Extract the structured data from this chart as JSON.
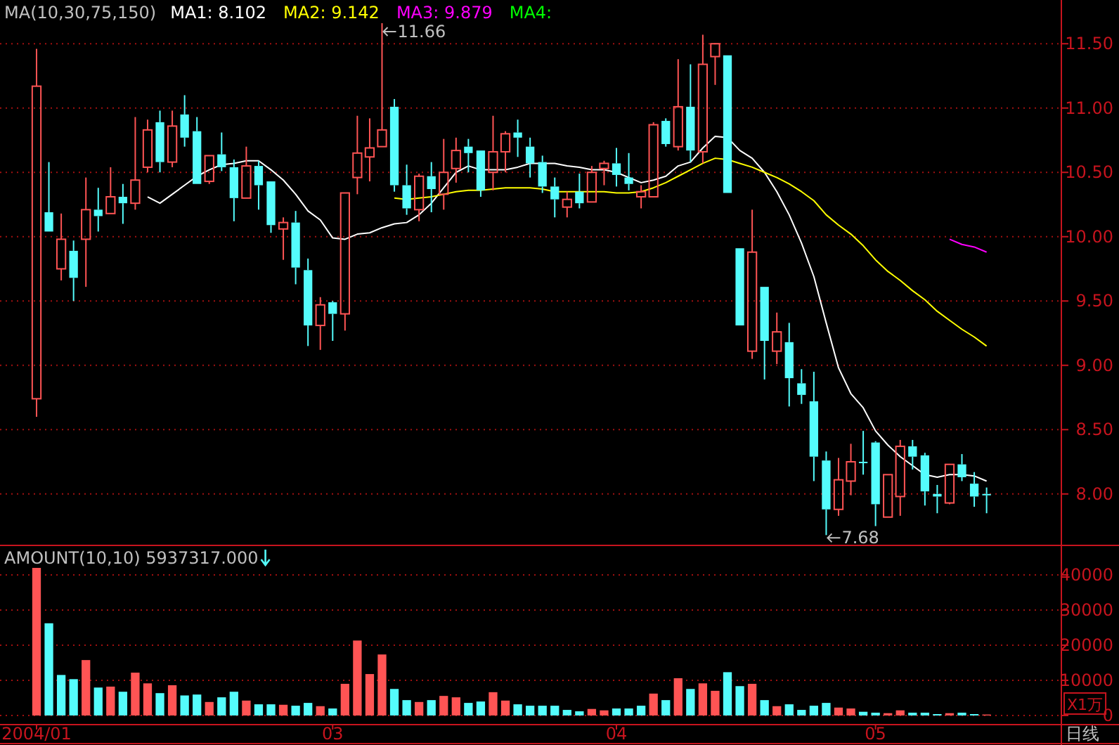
{
  "chart_data": [
    {
      "type": "candlestick",
      "categories": [
        "2004/01",
        null,
        null,
        null,
        null,
        null,
        null,
        null,
        null,
        null,
        null,
        null,
        null,
        null,
        null,
        null,
        null,
        null,
        null,
        null,
        null,
        null,
        null,
        null,
        "03",
        null,
        null,
        null,
        null,
        null,
        null,
        null,
        null,
        null,
        null,
        null,
        null,
        null,
        null,
        null,
        null,
        null,
        null,
        null,
        null,
        null,
        null,
        "04",
        null,
        null,
        null,
        null,
        null,
        null,
        null,
        null,
        null,
        null,
        null,
        null,
        null,
        null,
        null,
        null,
        null,
        null,
        null,
        null,
        "05",
        null,
        null,
        null,
        null,
        null,
        null,
        null,
        null,
        null
      ],
      "ohlc": [
        [
          8.74,
          11.46,
          8.6,
          11.17
        ],
        [
          10.19,
          10.58,
          10.04,
          10.04
        ],
        [
          9.75,
          10.18,
          9.66,
          9.98
        ],
        [
          9.89,
          9.97,
          9.5,
          9.68
        ],
        [
          9.98,
          10.46,
          9.61,
          10.21
        ],
        [
          10.21,
          10.38,
          10.04,
          10.16
        ],
        [
          10.18,
          10.54,
          10.18,
          10.31
        ],
        [
          10.31,
          10.41,
          10.1,
          10.26
        ],
        [
          10.26,
          10.93,
          10.21,
          10.44
        ],
        [
          10.54,
          10.91,
          10.5,
          10.83
        ],
        [
          10.89,
          10.98,
          10.5,
          10.58
        ],
        [
          10.58,
          10.98,
          10.54,
          10.86
        ],
        [
          10.95,
          11.1,
          10.7,
          10.77
        ],
        [
          10.82,
          10.93,
          10.41,
          10.41
        ],
        [
          10.43,
          10.63,
          10.41,
          10.63
        ],
        [
          10.64,
          10.81,
          10.51,
          10.54
        ],
        [
          10.54,
          10.6,
          10.12,
          10.3
        ],
        [
          10.3,
          10.7,
          10.3,
          10.55
        ],
        [
          10.55,
          10.59,
          10.21,
          10.4
        ],
        [
          10.43,
          10.43,
          10.03,
          10.09
        ],
        [
          10.06,
          10.15,
          9.82,
          10.11
        ],
        [
          10.11,
          10.2,
          9.63,
          9.76
        ],
        [
          9.74,
          9.83,
          9.15,
          9.31
        ],
        [
          9.31,
          9.53,
          9.12,
          9.47
        ],
        [
          9.49,
          9.5,
          9.19,
          9.4
        ],
        [
          9.4,
          10.34,
          9.27,
          10.34
        ],
        [
          10.46,
          10.94,
          10.33,
          10.65
        ],
        [
          10.62,
          10.92,
          10.43,
          10.69
        ],
        [
          10.7,
          11.66,
          10.7,
          10.83
        ],
        [
          11.01,
          11.07,
          10.35,
          10.4
        ],
        [
          10.4,
          10.56,
          10.17,
          10.22
        ],
        [
          10.21,
          10.49,
          10.12,
          10.47
        ],
        [
          10.47,
          10.58,
          10.19,
          10.37
        ],
        [
          10.33,
          10.76,
          10.21,
          10.5
        ],
        [
          10.53,
          10.77,
          10.42,
          10.67
        ],
        [
          10.7,
          10.76,
          10.5,
          10.65
        ],
        [
          10.67,
          10.67,
          10.31,
          10.36
        ],
        [
          10.5,
          10.94,
          10.36,
          10.66
        ],
        [
          10.66,
          10.82,
          10.5,
          10.8
        ],
        [
          10.81,
          10.91,
          10.62,
          10.77
        ],
        [
          10.7,
          10.77,
          10.46,
          10.57
        ],
        [
          10.58,
          10.63,
          10.34,
          10.39
        ],
        [
          10.39,
          10.46,
          10.15,
          10.29
        ],
        [
          10.23,
          10.35,
          10.15,
          10.29
        ],
        [
          10.35,
          10.49,
          10.22,
          10.26
        ],
        [
          10.27,
          10.55,
          10.27,
          10.5
        ],
        [
          10.53,
          10.59,
          10.4,
          10.57
        ],
        [
          10.57,
          10.69,
          10.39,
          10.48
        ],
        [
          10.46,
          10.65,
          10.36,
          10.41
        ],
        [
          10.31,
          10.4,
          10.22,
          10.35
        ],
        [
          10.31,
          10.89,
          10.31,
          10.87
        ],
        [
          10.9,
          10.92,
          10.7,
          10.72
        ],
        [
          10.7,
          11.38,
          10.67,
          11.01
        ],
        [
          11.01,
          11.34,
          10.58,
          10.67
        ],
        [
          10.66,
          11.57,
          10.57,
          11.34
        ],
        [
          11.4,
          11.5,
          11.18,
          11.5
        ],
        [
          11.41,
          11.41,
          10.34,
          10.34
        ],
        [
          9.91,
          9.91,
          9.31,
          9.31
        ],
        [
          9.11,
          10.21,
          9.05,
          9.88
        ],
        [
          9.61,
          9.61,
          8.89,
          9.19
        ],
        [
          9.11,
          9.41,
          9.01,
          9.26
        ],
        [
          9.18,
          9.33,
          8.68,
          8.9
        ],
        [
          8.86,
          8.97,
          8.7,
          8.77
        ],
        [
          8.72,
          8.95,
          8.1,
          8.29
        ],
        [
          8.26,
          8.33,
          7.68,
          7.88
        ],
        [
          7.88,
          8.28,
          7.83,
          8.11
        ],
        [
          8.1,
          8.39,
          7.99,
          8.25
        ],
        [
          8.25,
          8.49,
          8.15,
          8.24
        ],
        [
          8.4,
          8.41,
          7.75,
          7.92
        ],
        [
          7.82,
          8.15,
          7.82,
          8.15
        ],
        [
          7.98,
          8.42,
          7.83,
          8.37
        ],
        [
          8.37,
          8.42,
          8.19,
          8.29
        ],
        [
          8.3,
          8.32,
          7.91,
          8.02
        ],
        [
          8.0,
          8.07,
          7.85,
          7.98
        ],
        [
          7.93,
          8.23,
          7.92,
          8.23
        ],
        [
          8.23,
          8.31,
          8.1,
          8.13
        ],
        [
          8.08,
          8.17,
          7.9,
          7.98
        ],
        [
          8.0,
          8.05,
          7.85,
          7.99
        ]
      ],
      "colors": [
        "#ff5454",
        "#54fcfc",
        "#ff5454",
        "#54fcfc",
        "#ff5454",
        "#54fcfc",
        "#ff5454",
        "#54fcfc",
        "#ff5454",
        "#ff5454",
        "#54fcfc",
        "#ff5454",
        "#54fcfc",
        "#54fcfc",
        "#ff5454",
        "#54fcfc",
        "#54fcfc",
        "#ff5454",
        "#54fcfc",
        "#54fcfc",
        "#ff5454",
        "#54fcfc",
        "#54fcfc",
        "#ff5454",
        "#54fcfc",
        "#ff5454",
        "#ff5454",
        "#ff5454",
        "#ff5454",
        "#54fcfc",
        "#54fcfc",
        "#ff5454",
        "#54fcfc",
        "#ff5454",
        "#ff5454",
        "#54fcfc",
        "#54fcfc",
        "#ff5454",
        "#ff5454",
        "#54fcfc",
        "#54fcfc",
        "#54fcfc",
        "#54fcfc",
        "#ff5454",
        "#54fcfc",
        "#ff5454",
        "#ff5454",
        "#54fcfc",
        "#54fcfc",
        "#ff5454",
        "#ff5454",
        "#54fcfc",
        "#ff5454",
        "#54fcfc",
        "#ff5454",
        "#ff5454",
        "#54fcfc",
        "#54fcfc",
        "#ff5454",
        "#54fcfc",
        "#ff5454",
        "#54fcfc",
        "#54fcfc",
        "#54fcfc",
        "#54fcfc",
        "#ff5454",
        "#ff5454",
        "#54fcfc",
        "#54fcfc",
        "#ff5454",
        "#ff5454",
        "#54fcfc",
        "#54fcfc",
        "#54fcfc",
        "#ff5454",
        "#54fcfc",
        "#54fcfc",
        "#54fcfc"
      ],
      "series": [
        {
          "name": "MA1: 8.102",
          "type": "line",
          "color": "#ffffff",
          "values": [
            null,
            null,
            null,
            null,
            null,
            null,
            null,
            null,
            null,
            10.31,
            10.26,
            10.33,
            10.4,
            10.47,
            10.52,
            10.56,
            10.57,
            10.59,
            10.59,
            10.52,
            10.44,
            10.33,
            10.2,
            10.13,
            9.99,
            9.98,
            10.02,
            10.03,
            10.07,
            10.1,
            10.11,
            10.17,
            10.26,
            10.38,
            10.5,
            10.55,
            10.52,
            10.52,
            10.52,
            10.54,
            10.57,
            10.57,
            10.57,
            10.55,
            10.54,
            10.52,
            10.52,
            10.5,
            10.46,
            10.42,
            10.44,
            10.47,
            10.55,
            10.58,
            10.69,
            10.78,
            10.77,
            10.67,
            10.61,
            10.5,
            10.35,
            10.17,
            9.95,
            9.69,
            9.33,
            8.98,
            8.78,
            8.67,
            8.49,
            8.38,
            8.29,
            8.22,
            8.15,
            8.13,
            8.15,
            8.15,
            8.14,
            8.1
          ]
        },
        {
          "name": "MA2: 9.142",
          "type": "line",
          "color": "#ffff00",
          "values": [
            null,
            null,
            null,
            null,
            null,
            null,
            null,
            null,
            null,
            null,
            null,
            null,
            null,
            null,
            null,
            null,
            null,
            null,
            null,
            null,
            null,
            null,
            null,
            null,
            null,
            null,
            null,
            null,
            null,
            10.3,
            10.29,
            10.3,
            10.31,
            10.33,
            10.35,
            10.36,
            10.36,
            10.37,
            10.38,
            10.38,
            10.38,
            10.37,
            10.35,
            10.35,
            10.35,
            10.35,
            10.35,
            10.34,
            10.34,
            10.35,
            10.38,
            10.42,
            10.47,
            10.52,
            10.57,
            10.61,
            10.6,
            10.57,
            10.54,
            10.5,
            10.46,
            10.41,
            10.35,
            10.28,
            10.17,
            10.09,
            10.02,
            9.93,
            9.82,
            9.73,
            9.66,
            9.58,
            9.51,
            9.42,
            9.35,
            9.28,
            9.22,
            9.15
          ]
        },
        {
          "name": "MA3: 9.879",
          "type": "line",
          "color": "#ff00ff",
          "values": [
            null,
            null,
            null,
            null,
            null,
            null,
            null,
            null,
            null,
            null,
            null,
            null,
            null,
            null,
            null,
            null,
            null,
            null,
            null,
            null,
            null,
            null,
            null,
            null,
            null,
            null,
            null,
            null,
            null,
            null,
            null,
            null,
            null,
            null,
            null,
            null,
            null,
            null,
            null,
            null,
            null,
            null,
            null,
            null,
            null,
            null,
            null,
            null,
            null,
            null,
            null,
            null,
            null,
            null,
            null,
            null,
            null,
            null,
            null,
            null,
            null,
            null,
            null,
            null,
            null,
            null,
            null,
            null,
            null,
            null,
            null,
            null,
            null,
            null,
            9.98,
            9.94,
            9.92,
            9.88
          ]
        }
      ],
      "ylim": [
        7.6,
        11.84
      ],
      "yticks": [
        {
          "value": 8,
          "label": "8.00"
        },
        {
          "value": 8.5,
          "label": "8.50"
        },
        {
          "value": 9,
          "label": "9.00"
        },
        {
          "value": 9.5,
          "label": "9.50"
        },
        {
          "value": 10,
          "label": "10.00"
        },
        {
          "value": 10.5,
          "label": "10.50"
        },
        {
          "value": 11,
          "label": "11.00"
        },
        {
          "value": 11.5,
          "label": "11.50"
        }
      ],
      "grid": "y",
      "tick_labels": "y",
      "legend": "top left",
      "annotations": [
        "MA(10,30,75,150)",
        "MA4:",
        "11.66",
        "7.68"
      ]
    },
    {
      "type": "bar",
      "categories": [
        "2004/01",
        null,
        null,
        null,
        null,
        null,
        null,
        null,
        null,
        null,
        null,
        null,
        null,
        null,
        null,
        null,
        null,
        null,
        null,
        null,
        null,
        null,
        null,
        null,
        "03",
        null,
        null,
        null,
        null,
        null,
        null,
        null,
        null,
        null,
        null,
        null,
        null,
        null,
        null,
        null,
        null,
        null,
        null,
        null,
        null,
        null,
        null,
        "04",
        null,
        null,
        null,
        null,
        null,
        null,
        null,
        null,
        null,
        null,
        null,
        null,
        null,
        null,
        null,
        null,
        null,
        null,
        null,
        null,
        "05",
        null,
        null,
        null,
        null,
        null,
        null,
        null,
        null,
        null
      ],
      "values": [
        42000,
        26240,
        11530,
        10340,
        15770,
        7950,
        8220,
        6760,
        12190,
        9140,
        6360,
        8610,
        5700,
        5960,
        3840,
        5170,
        6760,
        4240,
        3180,
        3180,
        3050,
        2780,
        3580,
        2650,
        1990,
        9010,
        21330,
        11790,
        17360,
        7550,
        4370,
        3840,
        4370,
        5570,
        5170,
        3580,
        3980,
        6630,
        4240,
        3180,
        2780,
        2780,
        2780,
        1590,
        1190,
        1860,
        1460,
        1990,
        1990,
        2780,
        6230,
        4370,
        10600,
        7550,
        9140,
        7020,
        12320,
        8350,
        9010,
        4370,
        2650,
        3180,
        1590,
        2780,
        3580,
        2250,
        1990,
        1060,
        800,
        660,
        1460,
        800,
        800,
        400,
        660,
        800,
        400,
        270
      ],
      "colors": [
        "#ff5454",
        "#54fcfc",
        "#54fcfc",
        "#54fcfc",
        "#ff5454",
        "#54fcfc",
        "#ff5454",
        "#54fcfc",
        "#ff5454",
        "#ff5454",
        "#54fcfc",
        "#ff5454",
        "#54fcfc",
        "#54fcfc",
        "#ff5454",
        "#54fcfc",
        "#54fcfc",
        "#ff5454",
        "#54fcfc",
        "#54fcfc",
        "#ff5454",
        "#54fcfc",
        "#54fcfc",
        "#ff5454",
        "#54fcfc",
        "#ff5454",
        "#ff5454",
        "#ff5454",
        "#ff5454",
        "#54fcfc",
        "#54fcfc",
        "#ff5454",
        "#54fcfc",
        "#ff5454",
        "#ff5454",
        "#54fcfc",
        "#54fcfc",
        "#ff5454",
        "#ff5454",
        "#54fcfc",
        "#54fcfc",
        "#54fcfc",
        "#54fcfc",
        "#54fcfc",
        "#54fcfc",
        "#ff5454",
        "#ff5454",
        "#54fcfc",
        "#54fcfc",
        "#54fcfc",
        "#ff5454",
        "#54fcfc",
        "#ff5454",
        "#54fcfc",
        "#ff5454",
        "#ff5454",
        "#54fcfc",
        "#54fcfc",
        "#ff5454",
        "#54fcfc",
        "#ff5454",
        "#54fcfc",
        "#54fcfc",
        "#54fcfc",
        "#54fcfc",
        "#ff5454",
        "#ff5454",
        "#54fcfc",
        "#54fcfc",
        "#ff5454",
        "#ff5454",
        "#54fcfc",
        "#54fcfc",
        "#54fcfc",
        "#ff5454",
        "#54fcfc",
        "#54fcfc",
        "#ff5454"
      ],
      "ylim": [
        0,
        48400
      ],
      "yticks": [
        0,
        10000,
        20000,
        30000,
        40000
      ],
      "grid": "y",
      "annotations": [
        "AMOUNT(10,10) 5937317.000",
        "X1万",
        "日线"
      ]
    }
  ]
}
